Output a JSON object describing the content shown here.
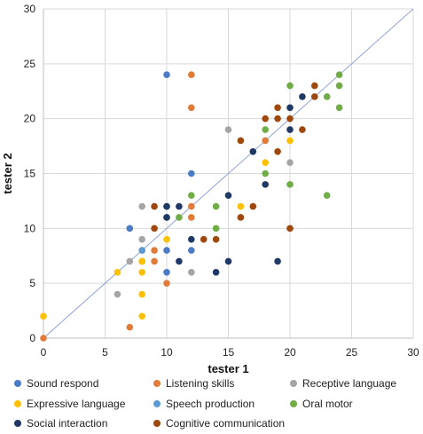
{
  "chart_data": {
    "type": "scatter",
    "xlabel": "tester 1",
    "ylabel": "tester 2",
    "xlim": [
      0,
      30
    ],
    "ylim": [
      0,
      30
    ],
    "xticks": [
      "0",
      "5",
      "10",
      "15",
      "20",
      "25",
      "30"
    ],
    "yticks": [
      "0",
      "5",
      "10",
      "15",
      "20",
      "25",
      "30"
    ],
    "grid": true,
    "legend_position": "bottom",
    "reference_line": {
      "from": [
        0,
        0
      ],
      "to": [
        30,
        30
      ],
      "color": "#8ea3d6"
    },
    "series": [
      {
        "name": "Sound respond",
        "color": "#4a7bc4",
        "points": [
          [
            7,
            10
          ],
          [
            10,
            24
          ],
          [
            10,
            8
          ],
          [
            10,
            6
          ],
          [
            12,
            15
          ],
          [
            12,
            8
          ]
        ]
      },
      {
        "name": "Listening skills",
        "color": "#e07b39",
        "points": [
          [
            0,
            0
          ],
          [
            7,
            1
          ],
          [
            8,
            8
          ],
          [
            8,
            7
          ],
          [
            9,
            8
          ],
          [
            9,
            7
          ],
          [
            10,
            5
          ],
          [
            12,
            24
          ],
          [
            12,
            21
          ],
          [
            12,
            11
          ],
          [
            12,
            12
          ],
          [
            18,
            18
          ]
        ]
      },
      {
        "name": "Receptive language",
        "color": "#a5a5a5",
        "points": [
          [
            6,
            4
          ],
          [
            7,
            7
          ],
          [
            8,
            9
          ],
          [
            8,
            12
          ],
          [
            10,
            11
          ],
          [
            12,
            6
          ],
          [
            15,
            19
          ],
          [
            20,
            16
          ]
        ]
      },
      {
        "name": "Expressive language",
        "color": "#ffc000",
        "points": [
          [
            0,
            2
          ],
          [
            6,
            6
          ],
          [
            8,
            7
          ],
          [
            8,
            6
          ],
          [
            8,
            4
          ],
          [
            8,
            2
          ],
          [
            10,
            12
          ],
          [
            10,
            9
          ],
          [
            16,
            12
          ],
          [
            18,
            16
          ],
          [
            20,
            18
          ]
        ]
      },
      {
        "name": "Speech production",
        "color": "#5b9bd5",
        "points": [
          [
            8,
            8
          ],
          [
            10,
            12
          ]
        ]
      },
      {
        "name": "Oral motor",
        "color": "#70ad47",
        "points": [
          [
            11,
            11
          ],
          [
            12,
            13
          ],
          [
            14,
            12
          ],
          [
            14,
            10
          ],
          [
            18,
            19
          ],
          [
            18,
            15
          ],
          [
            20,
            23
          ],
          [
            20,
            14
          ],
          [
            23,
            22
          ],
          [
            23,
            13
          ],
          [
            24,
            24
          ],
          [
            24,
            23
          ],
          [
            24,
            21
          ]
        ]
      },
      {
        "name": "Social interaction",
        "color": "#1f3864",
        "points": [
          [
            10,
            11
          ],
          [
            10,
            12
          ],
          [
            11,
            12
          ],
          [
            11,
            7
          ],
          [
            12,
            9
          ],
          [
            14,
            6
          ],
          [
            15,
            13
          ],
          [
            15,
            7
          ],
          [
            17,
            17
          ],
          [
            18,
            14
          ],
          [
            19,
            7
          ],
          [
            20,
            21
          ],
          [
            20,
            19
          ],
          [
            21,
            22
          ]
        ]
      },
      {
        "name": "Cognitive communication",
        "color": "#9e480e",
        "points": [
          [
            9,
            10
          ],
          [
            9,
            12
          ],
          [
            13,
            9
          ],
          [
            14,
            9
          ],
          [
            16,
            18
          ],
          [
            16,
            11
          ],
          [
            17,
            12
          ],
          [
            18,
            20
          ],
          [
            19,
            21
          ],
          [
            19,
            20
          ],
          [
            19,
            17
          ],
          [
            20,
            20
          ],
          [
            20,
            10
          ],
          [
            21,
            19
          ],
          [
            22,
            23
          ],
          [
            22,
            22
          ]
        ]
      }
    ]
  }
}
